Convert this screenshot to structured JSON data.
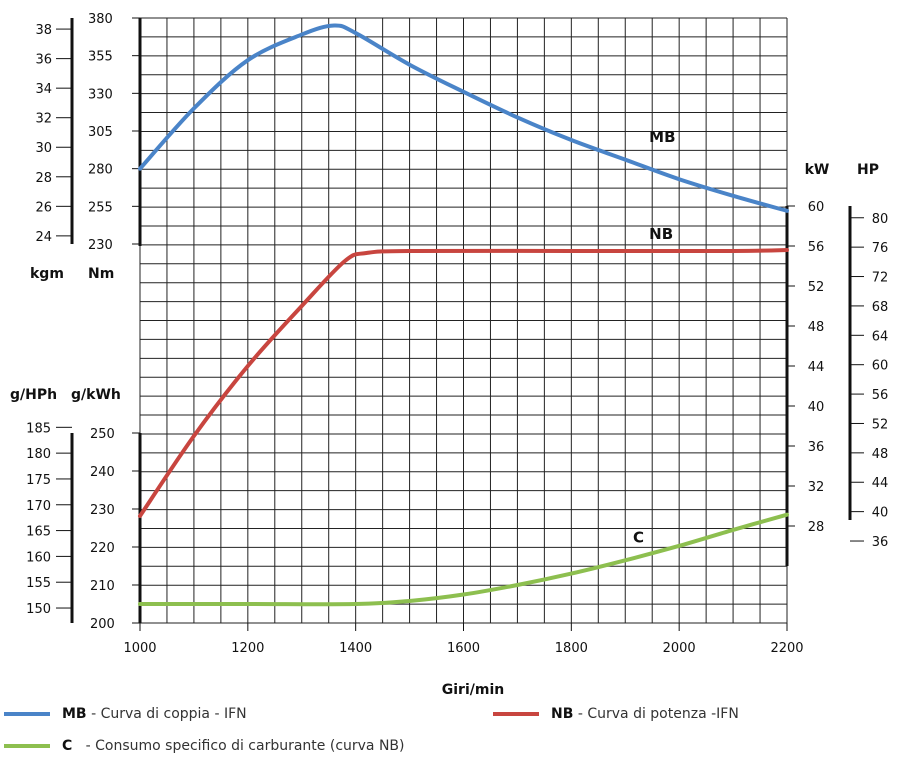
{
  "colors": {
    "torque": "#4a84c8",
    "power": "#c8453f",
    "consumption": "#8dbf4f",
    "grid": "#222222"
  },
  "chart_data": {
    "type": "line",
    "xlabel": "Giri/min",
    "x_ticks": [
      1000,
      1200,
      1400,
      1600,
      1800,
      2000,
      2200
    ],
    "xlim": [
      1000,
      2200
    ],
    "series": [
      {
        "key": "MB",
        "name": "Curva di coppia - IFN",
        "axis": "Nm",
        "color": "#4a84c8",
        "x": [
          1000,
          1100,
          1200,
          1300,
          1360,
          1400,
          1500,
          1600,
          1700,
          1800,
          1900,
          2000,
          2100,
          2200
        ],
        "y": [
          280,
          320,
          352,
          369,
          375,
          370,
          349,
          331,
          314,
          299,
          286,
          273,
          262,
          252
        ]
      },
      {
        "key": "NB",
        "name": "Curva di potenza -IFN",
        "axis": "kW",
        "color": "#c8453f",
        "x": [
          1000,
          1100,
          1200,
          1300,
          1380,
          1420,
          1500,
          1800,
          2100,
          2200
        ],
        "y": [
          29,
          37,
          44,
          50,
          54.5,
          55.3,
          55.5,
          55.5,
          55.5,
          55.6
        ]
      },
      {
        "key": "C",
        "name": "Consumo specifico di carburante (curva NB)",
        "axis": "g/kWh",
        "color": "#8dbf4f",
        "x": [
          1000,
          1200,
          1400,
          1500,
          1600,
          1700,
          1800,
          1900,
          2000,
          2100,
          2200
        ],
        "y": [
          205,
          205,
          205,
          205.8,
          207.5,
          210,
          213,
          216.5,
          220.3,
          224.5,
          228.5
        ]
      }
    ],
    "axes": {
      "nm": {
        "unit": "Nm",
        "range": [
          230,
          380
        ],
        "ticks": [
          230,
          255,
          280,
          305,
          330,
          355,
          380
        ]
      },
      "kgm": {
        "unit": "kgm",
        "range": [
          23.45,
          38.75
        ],
        "ticks": [
          24,
          26,
          28,
          30,
          32,
          34,
          36,
          38
        ]
      },
      "kw": {
        "unit": "kW",
        "range": [
          24,
          60
        ],
        "ticks": [
          28,
          32,
          36,
          40,
          44,
          48,
          52,
          56,
          60
        ]
      },
      "hp": {
        "unit": "HP",
        "range": [
          32.6,
          81.6
        ],
        "ticks": [
          36,
          40,
          44,
          48,
          52,
          56,
          60,
          64,
          68,
          72,
          76,
          80
        ]
      },
      "gkwh": {
        "unit": "g/kWh",
        "range": [
          200,
          250
        ],
        "ticks": [
          200,
          210,
          220,
          230,
          240,
          250
        ]
      },
      "ghph": {
        "unit": "g/HPh",
        "range": [
          147.1,
          183.9
        ],
        "ticks": [
          150,
          155,
          160,
          165,
          170,
          175,
          180,
          185
        ]
      }
    },
    "curve_labels": [
      {
        "text": "MB",
        "x": 2000,
        "y_nm": 301
      },
      {
        "text": "NB",
        "x": 2000,
        "y_kw": 57.2
      },
      {
        "text": "C",
        "x": 1970,
        "y_gkwh": 222.5
      }
    ],
    "grid": true
  },
  "legend": {
    "items": [
      {
        "key": "MB",
        "text": "- Curva di coppia - IFN"
      },
      {
        "key": "NB",
        "text": "- Curva di potenza  -IFN"
      },
      {
        "key": "C",
        "text": "   - Consumo specifico di carburante (curva NB)"
      }
    ]
  }
}
